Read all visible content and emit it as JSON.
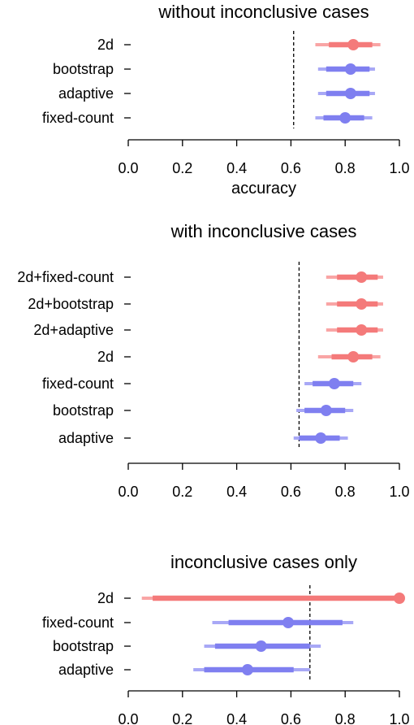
{
  "colors": {
    "red": "#f47a7a",
    "red_light": "#f9a5a5",
    "blue": "#7f7ff0",
    "blue_light": "#a8a8f6",
    "axis": "#000000",
    "reference_line": "#000000"
  },
  "chart_data": [
    {
      "type": "forest",
      "title": "without inconclusive cases",
      "xlabel": "accuracy",
      "xlim": [
        0.0,
        1.0
      ],
      "xticks": [
        "0.0",
        "0.2",
        "0.4",
        "0.6",
        "0.8",
        "1.0"
      ],
      "reference_x": 0.61,
      "categories": [
        "2d",
        "bootstrap",
        "adaptive",
        "fixed-count"
      ],
      "series": [
        {
          "color": "red",
          "point": 0.83,
          "inner": [
            0.74,
            0.9
          ],
          "outer": [
            0.69,
            0.93
          ]
        },
        {
          "color": "blue",
          "point": 0.82,
          "inner": [
            0.73,
            0.89
          ],
          "outer": [
            0.7,
            0.91
          ]
        },
        {
          "color": "blue",
          "point": 0.82,
          "inner": [
            0.73,
            0.89
          ],
          "outer": [
            0.7,
            0.91
          ]
        },
        {
          "color": "blue",
          "point": 0.8,
          "inner": [
            0.72,
            0.87
          ],
          "outer": [
            0.69,
            0.9
          ]
        }
      ]
    },
    {
      "type": "forest",
      "title": "with inconclusive cases",
      "xlabel": "",
      "xlim": [
        0.0,
        1.0
      ],
      "xticks": [
        "0.0",
        "0.2",
        "0.4",
        "0.6",
        "0.8",
        "1.0"
      ],
      "reference_x": 0.63,
      "categories": [
        "2d+fixed-count",
        "2d+bootstrap",
        "2d+adaptive",
        "2d",
        "fixed-count",
        "bootstrap",
        "adaptive"
      ],
      "series": [
        {
          "color": "red",
          "point": 0.86,
          "inner": [
            0.77,
            0.92
          ],
          "outer": [
            0.73,
            0.94
          ]
        },
        {
          "color": "red",
          "point": 0.86,
          "inner": [
            0.77,
            0.92
          ],
          "outer": [
            0.73,
            0.94
          ]
        },
        {
          "color": "red",
          "point": 0.86,
          "inner": [
            0.77,
            0.92
          ],
          "outer": [
            0.73,
            0.94
          ]
        },
        {
          "color": "red",
          "point": 0.83,
          "inner": [
            0.75,
            0.9
          ],
          "outer": [
            0.7,
            0.93
          ]
        },
        {
          "color": "blue",
          "point": 0.76,
          "inner": [
            0.68,
            0.83
          ],
          "outer": [
            0.65,
            0.86
          ]
        },
        {
          "color": "blue",
          "point": 0.73,
          "inner": [
            0.65,
            0.8
          ],
          "outer": [
            0.62,
            0.83
          ]
        },
        {
          "color": "blue",
          "point": 0.71,
          "inner": [
            0.63,
            0.78
          ],
          "outer": [
            0.61,
            0.81
          ]
        }
      ]
    },
    {
      "type": "forest",
      "title": "inconclusive cases only",
      "xlabel": "",
      "xlim": [
        0.0,
        1.0
      ],
      "xticks": [
        "0.0",
        "0.2",
        "0.4",
        "0.6",
        "0.8",
        "1.0"
      ],
      "reference_x": 0.67,
      "categories": [
        "2d",
        "fixed-count",
        "bootstrap",
        "adaptive"
      ],
      "series": [
        {
          "color": "red",
          "point": 1.0,
          "inner": [
            0.09,
            1.0
          ],
          "outer": [
            0.05,
            1.0
          ]
        },
        {
          "color": "blue",
          "point": 0.59,
          "inner": [
            0.37,
            0.79
          ],
          "outer": [
            0.31,
            0.83
          ]
        },
        {
          "color": "blue",
          "point": 0.49,
          "inner": [
            0.32,
            0.67
          ],
          "outer": [
            0.28,
            0.71
          ]
        },
        {
          "color": "blue",
          "point": 0.44,
          "inner": [
            0.28,
            0.61
          ],
          "outer": [
            0.24,
            0.67
          ]
        }
      ]
    }
  ]
}
